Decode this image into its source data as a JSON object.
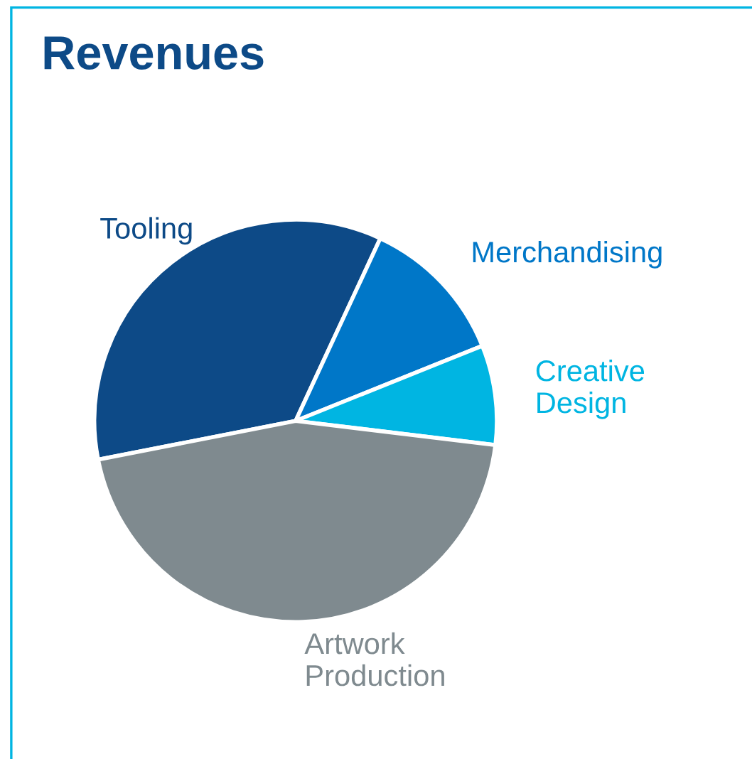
{
  "chart_data": {
    "type": "pie",
    "title": "Revenues",
    "categories": [
      "Tooling",
      "Merchandising",
      "Creative\nDesign",
      "Artwork\nProduction"
    ],
    "values": [
      35,
      12,
      8,
      45
    ],
    "colors": [
      "#0d4a87",
      "#0077c8",
      "#00b5e2",
      "#7f8a8f"
    ],
    "legend": false
  }
}
